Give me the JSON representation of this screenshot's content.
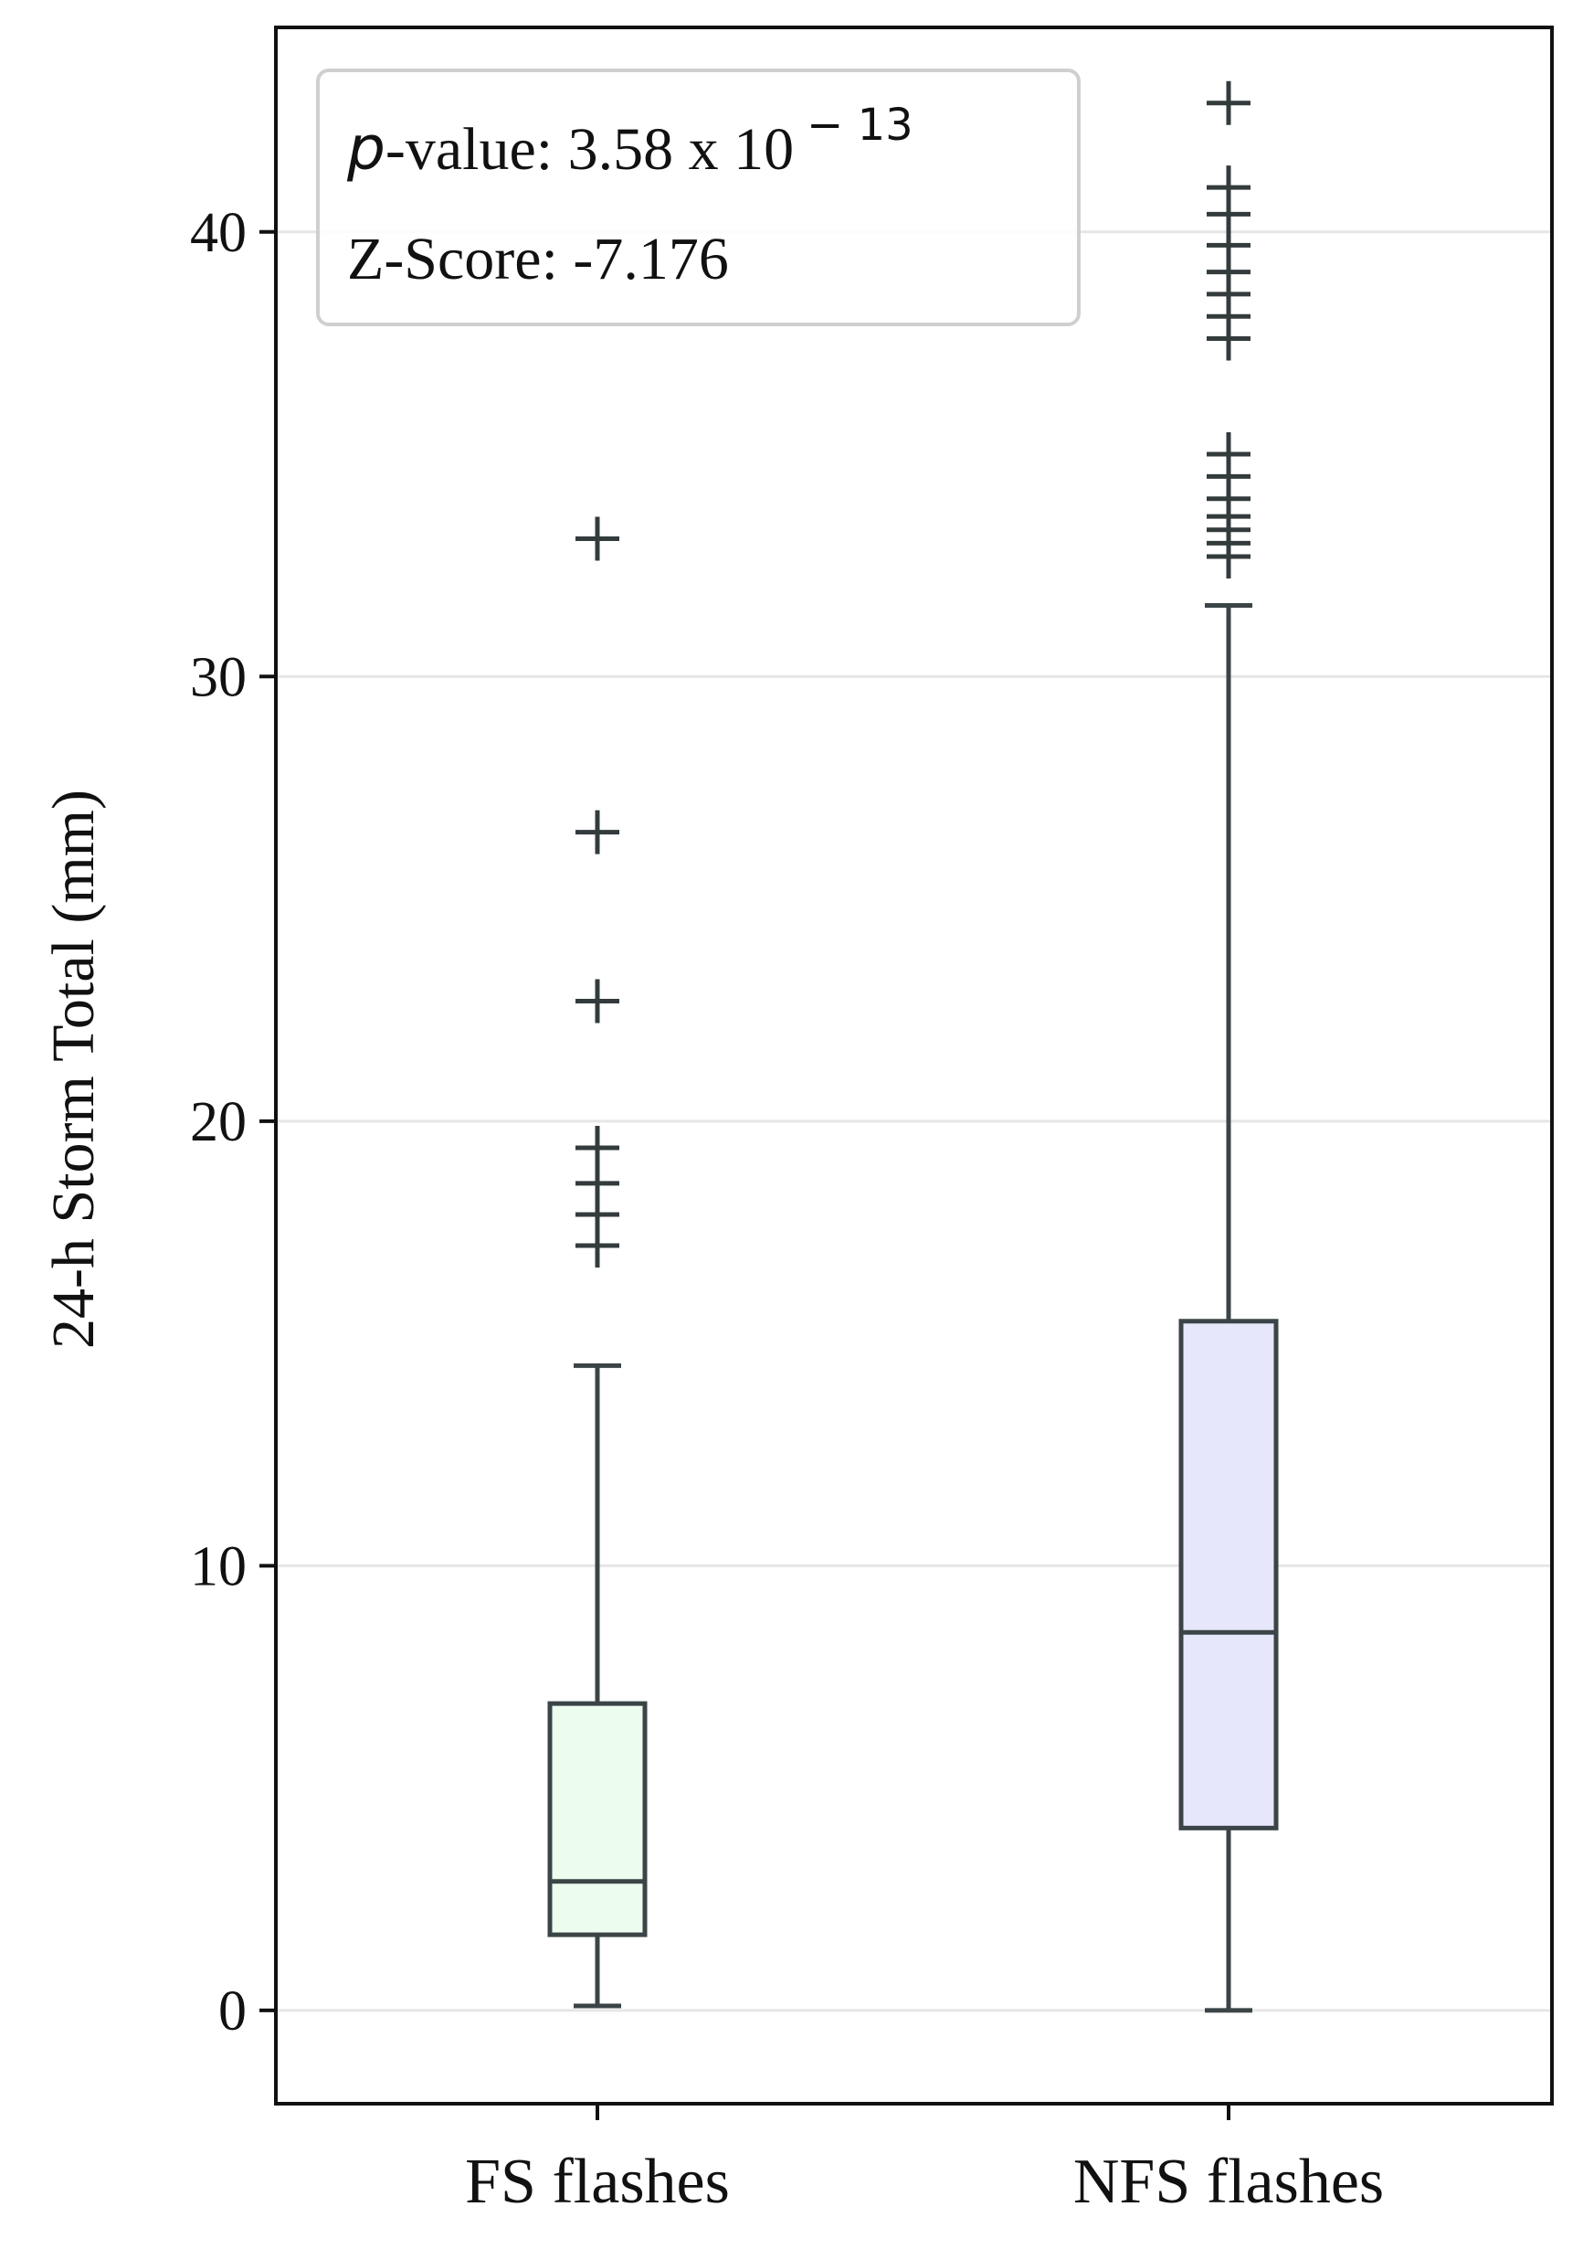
{
  "chart_data": {
    "type": "box",
    "title": "",
    "xlabel": "",
    "ylabel": "24-h Storm Total (mm)",
    "ylim": [
      -2.1,
      44.6
    ],
    "yticks": [
      "0",
      "10",
      "20",
      "30",
      "40"
    ],
    "grid": "horizontal",
    "categories": [
      "FS flashes",
      "NFS flashes"
    ],
    "series": [
      {
        "category": "FS flashes",
        "color": "#ecfcee",
        "whisker_low": 0.1,
        "q1": 1.7,
        "median": 2.9,
        "q3": 6.9,
        "whisker_high": 14.5,
        "outliers": [
          17.2,
          17.9,
          18.6,
          19.4,
          22.7,
          26.5,
          33.1
        ]
      },
      {
        "category": "NFS flashes",
        "color": "#e6e7fb",
        "whisker_low": 0.0,
        "q1": 4.1,
        "median": 8.5,
        "q3": 15.5,
        "whisker_high": 31.6,
        "outliers": [
          32.7,
          33.0,
          33.3,
          33.6,
          34.0,
          34.5,
          35.0,
          37.6,
          38.1,
          38.6,
          39.1,
          39.7,
          40.4,
          41.0,
          42.9
        ]
      }
    ],
    "stats_box": {
      "p_symbol": "p",
      "p_label": "-value: 3.58 x 10",
      "p_exponent": "− 13",
      "z_label": "Z-Score: -7.176",
      "placement": "top-left"
    }
  },
  "colors": {
    "axis": "#111111",
    "box_edge": "#3b4446",
    "grid": "#e6e6e6",
    "outlier": "#333b3d"
  }
}
